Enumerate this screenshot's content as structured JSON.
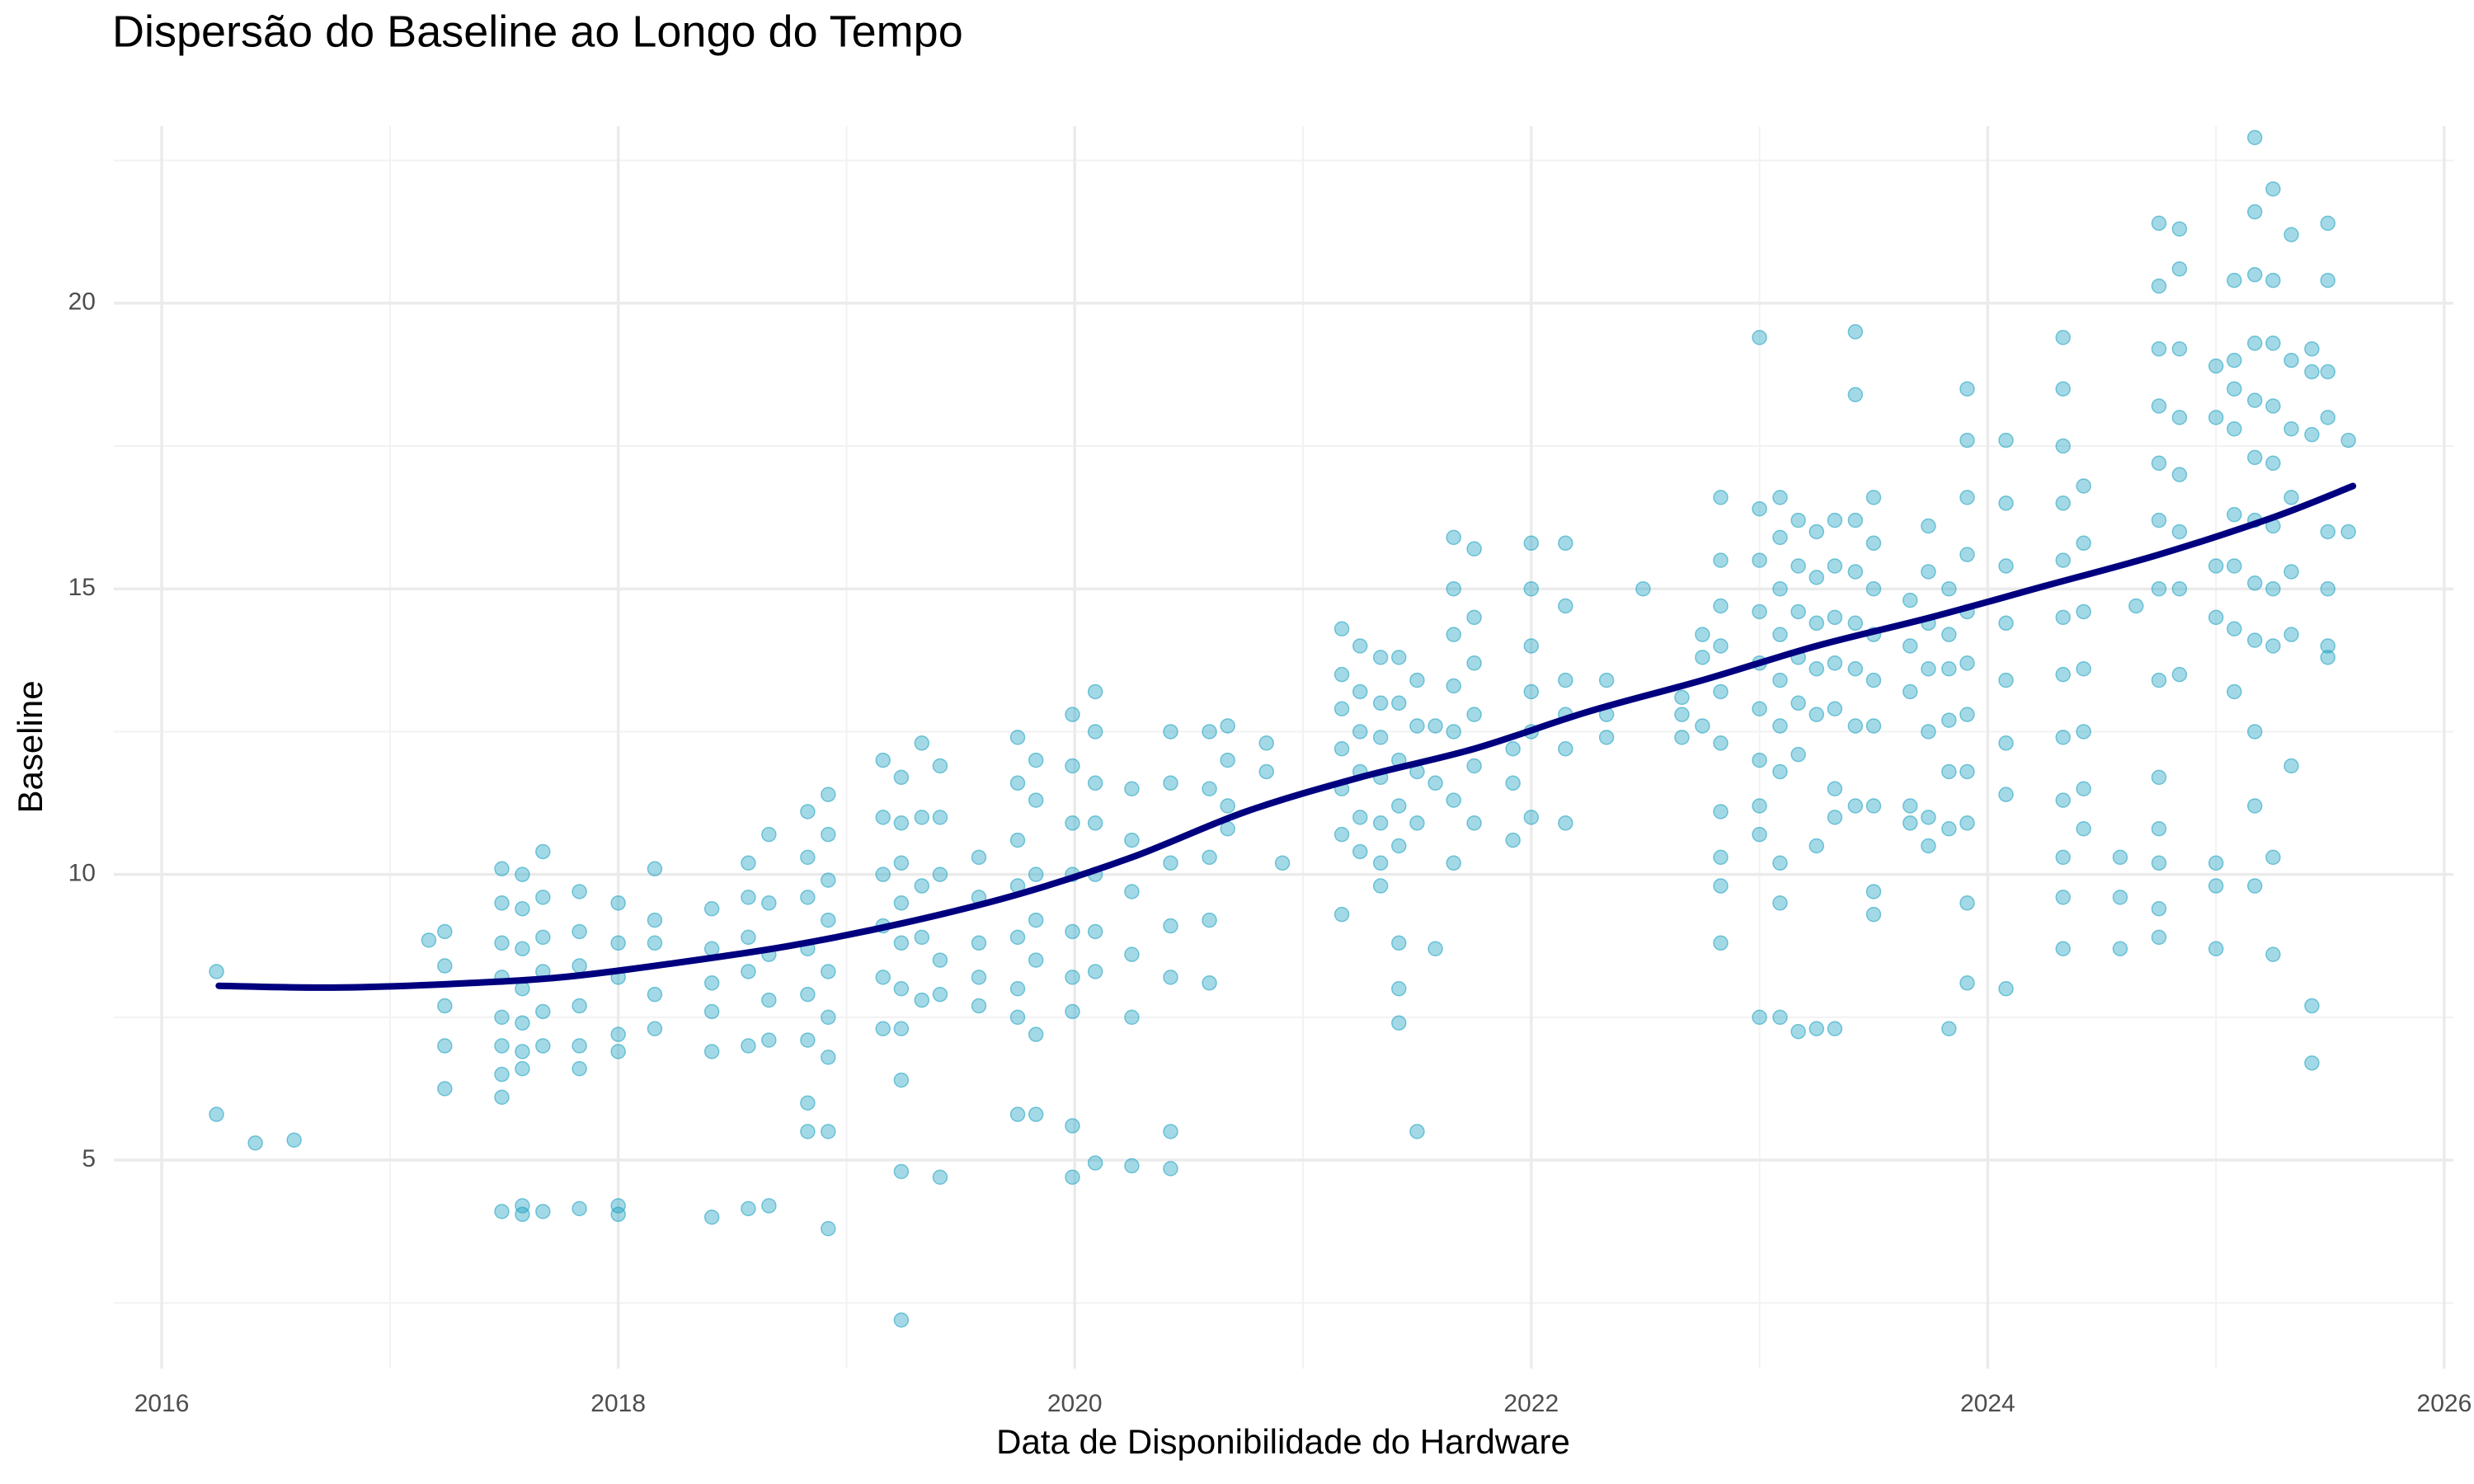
{
  "chart_data": {
    "type": "scatter",
    "title": "Dispersão do Baseline ao Longo do Tempo",
    "x_label": "Data de Disponibilidade do Hardware",
    "y_label": "Baseline",
    "xlim": [
      2015.79,
      2026.04
    ],
    "xticks": [
      2016,
      2018,
      2020,
      2022,
      2024,
      2026
    ],
    "ylim": [
      1.35,
      23.1
    ],
    "yticks": [
      5,
      10,
      15,
      20
    ],
    "grid": true,
    "color": "#1a9fc0",
    "x": [
      2016.24,
      2016.24,
      2016.41,
      2016.58,
      2017.17,
      2017.24,
      2017.24,
      2017.24,
      2017.24,
      2017.24,
      2017.49,
      2017.49,
      2017.49,
      2017.49,
      2017.49,
      2017.49,
      2017.49,
      2017.49,
      2017.49,
      2017.58,
      2017.58,
      2017.58,
      2017.58,
      2017.58,
      2017.58,
      2017.58,
      2017.58,
      2017.58,
      2017.67,
      2017.67,
      2017.67,
      2017.67,
      2017.67,
      2017.67,
      2017.67,
      2017.83,
      2017.83,
      2017.83,
      2017.83,
      2017.83,
      2017.83,
      2017.83,
      2018.0,
      2018.0,
      2018.0,
      2018.0,
      2018.0,
      2018.0,
      2018.0,
      2018.16,
      2018.16,
      2018.16,
      2018.16,
      2018.16,
      2018.41,
      2018.41,
      2018.41,
      2018.41,
      2018.41,
      2018.41,
      2018.57,
      2018.57,
      2018.57,
      2018.57,
      2018.57,
      2018.57,
      2018.66,
      2018.66,
      2018.66,
      2018.66,
      2018.66,
      2018.66,
      2018.83,
      2018.83,
      2018.83,
      2018.83,
      2018.83,
      2018.83,
      2018.83,
      2018.83,
      2018.92,
      2018.92,
      2018.92,
      2018.92,
      2018.92,
      2018.92,
      2018.92,
      2018.92,
      2018.92,
      2019.16,
      2019.16,
      2019.16,
      2019.16,
      2019.16,
      2019.16,
      2019.24,
      2019.24,
      2019.24,
      2019.24,
      2019.24,
      2019.24,
      2019.24,
      2019.24,
      2019.24,
      2019.24,
      2019.33,
      2019.33,
      2019.33,
      2019.33,
      2019.33,
      2019.41,
      2019.41,
      2019.41,
      2019.41,
      2019.41,
      2019.41,
      2019.58,
      2019.58,
      2019.58,
      2019.58,
      2019.58,
      2019.75,
      2019.75,
      2019.75,
      2019.75,
      2019.75,
      2019.75,
      2019.75,
      2019.75,
      2019.83,
      2019.83,
      2019.83,
      2019.83,
      2019.83,
      2019.83,
      2019.83,
      2019.99,
      2019.99,
      2019.99,
      2019.99,
      2019.99,
      2019.99,
      2019.99,
      2019.99,
      2019.99,
      2020.09,
      2020.09,
      2020.09,
      2020.09,
      2020.09,
      2020.09,
      2020.09,
      2020.09,
      2020.25,
      2020.25,
      2020.25,
      2020.25,
      2020.25,
      2020.25,
      2020.42,
      2020.42,
      2020.42,
      2020.42,
      2020.42,
      2020.42,
      2020.42,
      2020.59,
      2020.59,
      2020.59,
      2020.59,
      2020.59,
      2020.67,
      2020.67,
      2020.67,
      2020.67,
      2020.84,
      2020.84,
      2020.91,
      2021.17,
      2021.17,
      2021.17,
      2021.17,
      2021.17,
      2021.17,
      2021.17,
      2021.25,
      2021.25,
      2021.25,
      2021.25,
      2021.25,
      2021.25,
      2021.34,
      2021.34,
      2021.34,
      2021.34,
      2021.34,
      2021.34,
      2021.34,
      2021.42,
      2021.42,
      2021.42,
      2021.42,
      2021.42,
      2021.42,
      2021.42,
      2021.42,
      2021.5,
      2021.5,
      2021.5,
      2021.5,
      2021.5,
      2021.58,
      2021.58,
      2021.58,
      2021.66,
      2021.66,
      2021.66,
      2021.66,
      2021.66,
      2021.66,
      2021.66,
      2021.75,
      2021.75,
      2021.75,
      2021.75,
      2021.75,
      2021.75,
      2021.92,
      2021.92,
      2021.92,
      2022.0,
      2022.0,
      2022.0,
      2022.0,
      2022.0,
      2022.0,
      2022.15,
      2022.15,
      2022.15,
      2022.15,
      2022.15,
      2022.15,
      2022.33,
      2022.33,
      2022.33,
      2022.49,
      2022.66,
      2022.66,
      2022.66,
      2022.75,
      2022.75,
      2022.75,
      2022.83,
      2022.83,
      2022.83,
      2022.83,
      2022.83,
      2022.83,
      2022.83,
      2022.83,
      2022.83,
      2022.83,
      2023.0,
      2023.0,
      2023.0,
      2023.0,
      2023.0,
      2023.0,
      2023.0,
      2023.0,
      2023.0,
      2023.0,
      2023.09,
      2023.09,
      2023.09,
      2023.09,
      2023.09,
      2023.09,
      2023.09,
      2023.09,
      2023.09,
      2023.09,
      2023.17,
      2023.17,
      2023.17,
      2023.17,
      2023.17,
      2023.17,
      2023.17,
      2023.25,
      2023.25,
      2023.25,
      2023.25,
      2023.25,
      2023.25,
      2023.25,
      2023.33,
      2023.33,
      2023.33,
      2023.33,
      2023.33,
      2023.33,
      2023.33,
      2023.33,
      2023.42,
      2023.42,
      2023.42,
      2023.42,
      2023.42,
      2023.42,
      2023.42,
      2023.42,
      2023.5,
      2023.5,
      2023.5,
      2023.5,
      2023.5,
      2023.5,
      2023.5,
      2023.5,
      2023.5,
      2023.66,
      2023.66,
      2023.66,
      2023.66,
      2023.66,
      2023.74,
      2023.74,
      2023.74,
      2023.74,
      2023.74,
      2023.74,
      2023.74,
      2023.83,
      2023.83,
      2023.83,
      2023.83,
      2023.83,
      2023.83,
      2023.83,
      2023.91,
      2023.91,
      2023.91,
      2023.91,
      2023.91,
      2023.91,
      2023.91,
      2023.91,
      2023.91,
      2023.91,
      2023.91,
      2024.08,
      2024.08,
      2024.08,
      2024.08,
      2024.08,
      2024.08,
      2024.08,
      2024.08,
      2024.33,
      2024.33,
      2024.33,
      2024.33,
      2024.33,
      2024.33,
      2024.33,
      2024.33,
      2024.33,
      2024.33,
      2024.33,
      2024.33,
      2024.42,
      2024.42,
      2024.42,
      2024.42,
      2024.42,
      2024.42,
      2024.42,
      2024.58,
      2024.58,
      2024.58,
      2024.65,
      2024.75,
      2024.75,
      2024.75,
      2024.75,
      2024.75,
      2024.75,
      2024.75,
      2024.75,
      2024.75,
      2024.75,
      2024.75,
      2024.75,
      2024.75,
      2024.84,
      2024.84,
      2024.84,
      2024.84,
      2024.84,
      2024.84,
      2024.84,
      2024.84,
      2025.0,
      2025.0,
      2025.0,
      2025.0,
      2025.0,
      2025.0,
      2025.0,
      2025.08,
      2025.08,
      2025.08,
      2025.08,
      2025.08,
      2025.08,
      2025.08,
      2025.08,
      2025.17,
      2025.17,
      2025.17,
      2025.17,
      2025.17,
      2025.17,
      2025.17,
      2025.17,
      2025.17,
      2025.17,
      2025.17,
      2025.17,
      2025.25,
      2025.25,
      2025.25,
      2025.25,
      2025.25,
      2025.25,
      2025.25,
      2025.25,
      2025.25,
      2025.25,
      2025.33,
      2025.33,
      2025.33,
      2025.33,
      2025.33,
      2025.33,
      2025.33,
      2025.42,
      2025.42,
      2025.42,
      2025.42,
      2025.42,
      2025.49,
      2025.49,
      2025.49,
      2025.49,
      2025.49,
      2025.49,
      2025.49,
      2025.49,
      2025.58,
      2025.58
    ],
    "values": [
      8.3,
      5.8,
      5.3,
      5.35,
      8.85,
      9.0,
      8.4,
      7.7,
      7.0,
      6.25,
      10.1,
      9.5,
      8.8,
      8.2,
      7.5,
      7.0,
      6.5,
      6.1,
      4.1,
      10.0,
      9.4,
      8.7,
      8.0,
      7.4,
      6.9,
      6.6,
      4.2,
      4.05,
      10.4,
      9.6,
      8.9,
      8.3,
      7.6,
      7.0,
      4.1,
      9.7,
      9.0,
      8.4,
      7.7,
      7.0,
      6.6,
      4.15,
      9.5,
      8.8,
      8.2,
      7.2,
      6.9,
      4.2,
      4.05,
      10.1,
      9.2,
      8.8,
      7.9,
      7.3,
      9.4,
      8.7,
      8.1,
      7.6,
      6.9,
      4.0,
      10.2,
      9.6,
      8.9,
      8.3,
      7.0,
      4.15,
      10.7,
      9.5,
      8.6,
      7.8,
      7.1,
      4.2,
      11.1,
      10.3,
      9.6,
      8.7,
      7.9,
      7.1,
      6.0,
      5.5,
      11.4,
      10.7,
      9.9,
      9.2,
      8.3,
      7.5,
      6.8,
      5.5,
      3.8,
      12.0,
      11.0,
      10.0,
      9.1,
      8.2,
      7.3,
      11.7,
      10.9,
      10.2,
      9.5,
      8.8,
      8.0,
      7.3,
      6.4,
      4.8,
      2.2,
      12.3,
      11.0,
      9.8,
      8.9,
      7.8,
      11.9,
      11.0,
      10.0,
      8.5,
      7.9,
      4.7,
      10.3,
      9.6,
      8.8,
      8.2,
      7.7,
      12.4,
      11.6,
      10.6,
      9.8,
      8.9,
      8.0,
      7.5,
      5.8,
      12.0,
      11.3,
      10.0,
      9.2,
      8.5,
      7.2,
      5.8,
      12.8,
      11.9,
      10.9,
      10.0,
      9.0,
      8.2,
      7.6,
      5.6,
      4.7,
      13.2,
      12.5,
      11.6,
      10.9,
      10.0,
      9.0,
      8.3,
      4.95,
      11.5,
      10.6,
      9.7,
      8.6,
      7.5,
      4.9,
      12.5,
      11.6,
      10.2,
      9.1,
      8.2,
      5.5,
      4.85,
      12.5,
      11.5,
      10.3,
      9.2,
      8.1,
      12.6,
      12.0,
      11.2,
      10.8,
      12.3,
      11.8,
      10.2,
      14.3,
      13.5,
      12.9,
      12.2,
      11.5,
      10.7,
      9.3,
      14.0,
      13.2,
      12.5,
      11.8,
      11.0,
      10.4,
      13.8,
      13.0,
      12.4,
      11.7,
      10.9,
      10.2,
      9.8,
      13.8,
      13.0,
      12.0,
      11.2,
      10.5,
      8.8,
      8.0,
      7.4,
      13.4,
      12.6,
      11.8,
      10.9,
      5.5,
      12.6,
      11.6,
      8.7,
      15.9,
      15.0,
      14.2,
      13.3,
      12.5,
      11.3,
      10.2,
      15.7,
      14.5,
      13.7,
      12.8,
      11.9,
      10.9,
      12.2,
      11.6,
      10.6,
      15.8,
      15.0,
      14.0,
      13.2,
      12.5,
      11.0,
      15.8,
      14.7,
      13.4,
      12.8,
      12.2,
      10.9,
      13.4,
      12.8,
      12.4,
      15.0,
      13.1,
      12.8,
      12.4,
      14.2,
      13.8,
      12.6,
      16.6,
      15.5,
      14.7,
      14.0,
      13.2,
      12.3,
      11.1,
      10.3,
      9.8,
      8.8,
      19.4,
      16.4,
      15.5,
      14.6,
      13.7,
      12.9,
      12.0,
      11.2,
      10.7,
      7.5,
      16.6,
      15.9,
      15.0,
      14.2,
      13.4,
      12.6,
      11.8,
      10.2,
      9.5,
      7.5,
      16.2,
      15.4,
      14.6,
      13.8,
      13.0,
      12.1,
      7.25,
      16.0,
      15.2,
      14.4,
      13.6,
      12.8,
      10.5,
      7.3,
      16.2,
      15.4,
      14.5,
      13.7,
      12.9,
      11.5,
      11.0,
      7.3,
      19.5,
      18.4,
      16.2,
      15.3,
      14.4,
      13.6,
      12.6,
      11.2,
      16.6,
      15.8,
      15.0,
      14.2,
      13.4,
      12.6,
      11.2,
      9.7,
      9.3,
      14.8,
      14.0,
      13.2,
      11.2,
      10.9,
      16.1,
      15.3,
      14.4,
      13.6,
      12.5,
      11.0,
      10.5,
      15.0,
      14.2,
      13.6,
      12.7,
      11.8,
      10.8,
      7.3,
      18.5,
      17.6,
      16.6,
      15.6,
      14.6,
      13.7,
      12.8,
      11.8,
      10.9,
      9.5,
      8.1,
      17.6,
      16.5,
      15.4,
      14.4,
      13.4,
      12.3,
      11.4,
      8.0,
      19.4,
      18.5,
      17.5,
      16.5,
      15.5,
      14.5,
      13.5,
      12.4,
      11.3,
      10.3,
      9.6,
      8.7,
      16.8,
      15.8,
      14.6,
      13.6,
      12.5,
      11.5,
      10.8,
      10.3,
      9.6,
      8.7,
      14.7,
      21.4,
      20.3,
      19.2,
      18.2,
      17.2,
      16.2,
      15.0,
      13.4,
      11.7,
      10.8,
      10.2,
      8.9,
      9.4,
      21.3,
      20.6,
      19.2,
      18.0,
      17.0,
      16.0,
      15.0,
      13.5,
      18.9,
      18.0,
      15.4,
      14.5,
      10.2,
      9.8,
      8.7,
      20.4,
      19.0,
      18.5,
      17.8,
      16.3,
      15.4,
      14.3,
      13.2,
      22.9,
      21.6,
      20.5,
      19.3,
      18.3,
      17.3,
      16.2,
      15.1,
      14.1,
      12.5,
      11.2,
      9.8,
      22.0,
      20.4,
      19.3,
      18.2,
      17.2,
      16.1,
      15.0,
      14.0,
      10.3,
      8.6,
      21.2,
      19.0,
      17.8,
      16.6,
      15.3,
      14.2,
      11.9,
      19.2,
      18.8,
      17.7,
      7.7,
      6.7,
      21.4,
      20.4,
      18.8,
      18.0,
      16.0,
      15.0,
      14.0,
      13.8,
      17.6,
      16.0
    ],
    "trend": {
      "color": "#00007f",
      "x": [
        2016.25,
        2016.75,
        2017.25,
        2017.75,
        2018.25,
        2018.75,
        2019.25,
        2019.75,
        2020.25,
        2020.75,
        2021.25,
        2021.75,
        2022.25,
        2022.75,
        2023.25,
        2023.75,
        2024.25,
        2024.75,
        2025.25,
        2025.6
      ],
      "values": [
        8.05,
        8.02,
        8.08,
        8.2,
        8.45,
        8.75,
        9.15,
        9.65,
        10.3,
        11.1,
        11.7,
        12.2,
        12.85,
        13.4,
        14.0,
        14.5,
        15.05,
        15.6,
        16.25,
        16.8
      ]
    }
  }
}
